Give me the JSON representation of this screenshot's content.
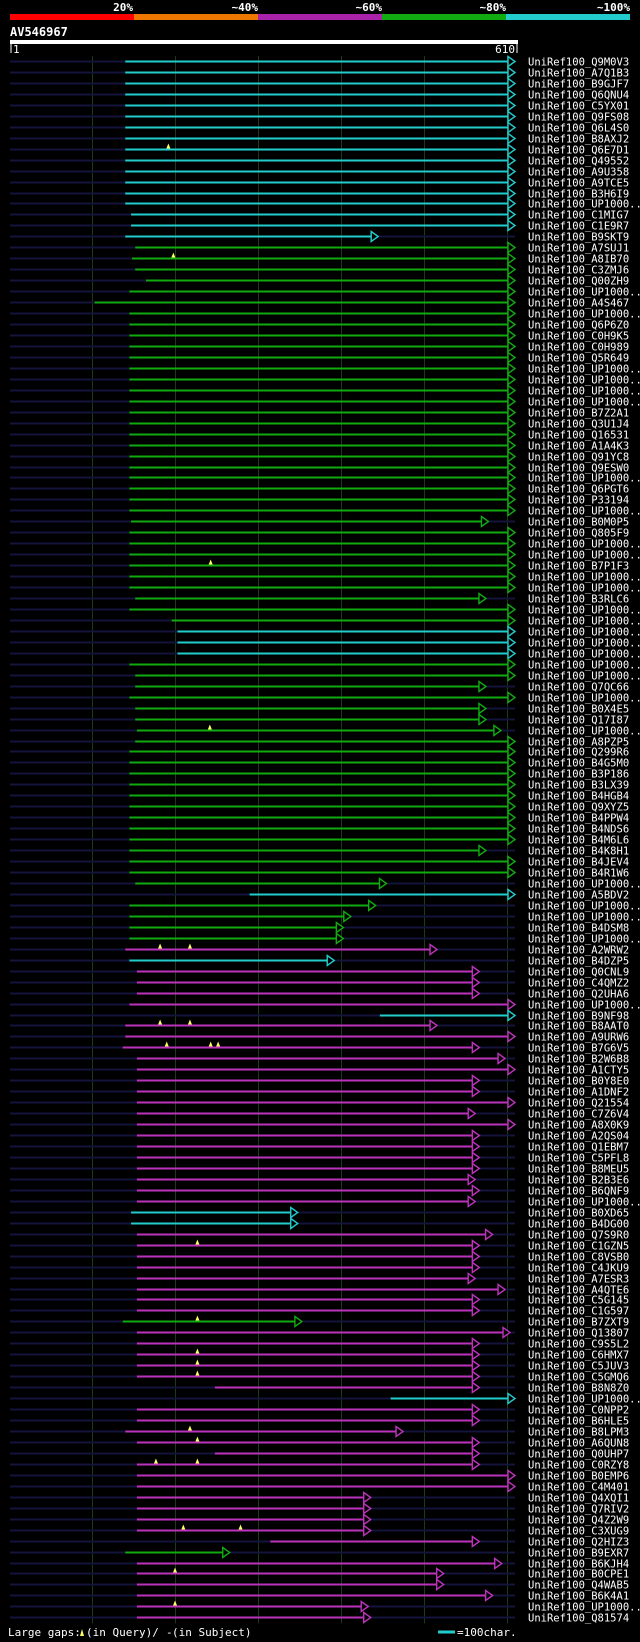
{
  "chart_data": {
    "type": "alignment-overview",
    "title": "AV546967",
    "query_start_label": "1",
    "query_end_label": "610",
    "query_length": 610,
    "identity_scale": {
      "labels": [
        "20%",
        "~40%",
        "~60%",
        "~80%",
        "~100%"
      ],
      "colors": [
        "#ff0000",
        "#ee7700",
        "#aa22aa",
        "#11aa11",
        "#22cccc"
      ]
    },
    "footer": {
      "gaps_label": "Large gaps:",
      "gaps_query": "(in Query)/",
      "gaps_subject_mark": "-",
      "gaps_subject": " (in Subject)",
      "scale_label": "=100char."
    },
    "hits": [
      {
        "name": "UniRef100_Q9M0V3",
        "start": 140,
        "end": 610,
        "color": "cyan"
      },
      {
        "name": "UniRef100_A7Q1B3",
        "start": 140,
        "end": 610,
        "color": "cyan"
      },
      {
        "name": "UniRef100_B9GJF7",
        "start": 140,
        "end": 610,
        "color": "cyan"
      },
      {
        "name": "UniRef100_Q6QNU4",
        "start": 140,
        "end": 610,
        "color": "cyan"
      },
      {
        "name": "UniRef100_C5YX01",
        "start": 140,
        "end": 610,
        "color": "cyan"
      },
      {
        "name": "UniRef100_Q9FS08",
        "start": 140,
        "end": 610,
        "color": "cyan"
      },
      {
        "name": "UniRef100_Q6L4S0",
        "start": 140,
        "end": 610,
        "color": "cyan"
      },
      {
        "name": "UniRef100_B8AXJ2",
        "start": 140,
        "end": 610,
        "color": "cyan"
      },
      {
        "name": "UniRef100_Q6E7D1",
        "start": 140,
        "end": 610,
        "color": "cyan",
        "gaps": [
          192
        ]
      },
      {
        "name": "UniRef100_Q49552",
        "start": 140,
        "end": 610,
        "color": "cyan"
      },
      {
        "name": "UniRef100_A9U358",
        "start": 140,
        "end": 610,
        "color": "cyan"
      },
      {
        "name": "UniRef100_A9TCE5",
        "start": 140,
        "end": 610,
        "color": "cyan"
      },
      {
        "name": "UniRef100_B3H6I9",
        "start": 140,
        "end": 610,
        "color": "cyan"
      },
      {
        "name": "UniRef100_UP1000..",
        "start": 140,
        "end": 610,
        "color": "cyan"
      },
      {
        "name": "UniRef100_C1MIG7",
        "start": 147,
        "end": 610,
        "color": "cyan"
      },
      {
        "name": "UniRef100_C1E9R7",
        "start": 147,
        "end": 610,
        "color": "cyan"
      },
      {
        "name": "UniRef100_B9SKT9",
        "start": 140,
        "end": 445,
        "color": "cyan"
      },
      {
        "name": "UniRef100_A7SUJ1",
        "start": 152,
        "end": 610,
        "color": "green"
      },
      {
        "name": "UniRef100_A8IB70",
        "start": 148,
        "end": 610,
        "color": "green",
        "gaps": [
          198
        ]
      },
      {
        "name": "UniRef100_C3ZMJ6",
        "start": 152,
        "end": 610,
        "color": "green"
      },
      {
        "name": "UniRef100_Q00ZH9",
        "start": 165,
        "end": 610,
        "color": "green"
      },
      {
        "name": "UniRef100_UP1000..",
        "start": 145,
        "end": 610,
        "color": "green"
      },
      {
        "name": "UniRef100_A4S467",
        "start": 103,
        "end": 610,
        "color": "green"
      },
      {
        "name": "UniRef100_UP1000..",
        "start": 145,
        "end": 610,
        "color": "green"
      },
      {
        "name": "UniRef100_Q6P6Z0",
        "start": 145,
        "end": 610,
        "color": "green"
      },
      {
        "name": "UniRef100_C0H9K5",
        "start": 145,
        "end": 610,
        "color": "green"
      },
      {
        "name": "UniRef100_C0H989",
        "start": 145,
        "end": 610,
        "color": "green"
      },
      {
        "name": "UniRef100_Q5R649",
        "start": 145,
        "end": 610,
        "color": "green"
      },
      {
        "name": "UniRef100_UP1000..",
        "start": 145,
        "end": 610,
        "color": "green"
      },
      {
        "name": "UniRef100_UP1000..",
        "start": 145,
        "end": 610,
        "color": "green"
      },
      {
        "name": "UniRef100_UP1000..",
        "start": 145,
        "end": 610,
        "color": "green"
      },
      {
        "name": "UniRef100_UP1000..",
        "start": 145,
        "end": 610,
        "color": "green"
      },
      {
        "name": "UniRef100_B7Z2A1",
        "start": 145,
        "end": 610,
        "color": "green"
      },
      {
        "name": "UniRef100_Q3U1J4",
        "start": 145,
        "end": 610,
        "color": "green"
      },
      {
        "name": "UniRef100_Q16531",
        "start": 145,
        "end": 610,
        "color": "green"
      },
      {
        "name": "UniRef100_A1A4K3",
        "start": 145,
        "end": 610,
        "color": "green"
      },
      {
        "name": "UniRef100_Q91YC8",
        "start": 145,
        "end": 610,
        "color": "green"
      },
      {
        "name": "UniRef100_Q9ESW0",
        "start": 145,
        "end": 610,
        "color": "green"
      },
      {
        "name": "UniRef100_UP1000..",
        "start": 145,
        "end": 610,
        "color": "green"
      },
      {
        "name": "UniRef100_Q6PGT6",
        "start": 145,
        "end": 610,
        "color": "green"
      },
      {
        "name": "UniRef100_P33194",
        "start": 145,
        "end": 610,
        "color": "green"
      },
      {
        "name": "UniRef100_UP1000..",
        "start": 145,
        "end": 610,
        "color": "green"
      },
      {
        "name": "UniRef100_B0M0P5",
        "start": 147,
        "end": 578,
        "color": "green"
      },
      {
        "name": "UniRef100_Q805F9",
        "start": 145,
        "end": 610,
        "color": "green"
      },
      {
        "name": "UniRef100_UP1000..",
        "start": 145,
        "end": 610,
        "color": "green"
      },
      {
        "name": "UniRef100_UP1000..",
        "start": 145,
        "end": 610,
        "color": "green"
      },
      {
        "name": "UniRef100_B7P1F3",
        "start": 145,
        "end": 610,
        "color": "green",
        "gaps": [
          243
        ]
      },
      {
        "name": "UniRef100_UP1000..",
        "start": 145,
        "end": 610,
        "color": "green"
      },
      {
        "name": "UniRef100_UP1000..",
        "start": 145,
        "end": 610,
        "color": "green"
      },
      {
        "name": "UniRef100_B3RLC6",
        "start": 152,
        "end": 575,
        "color": "green"
      },
      {
        "name": "UniRef100_UP1000..",
        "start": 145,
        "end": 610,
        "color": "green"
      },
      {
        "name": "UniRef100_UP1000..",
        "start": 196,
        "end": 610,
        "color": "green"
      },
      {
        "name": "UniRef100_UP1000..",
        "start": 203,
        "end": 610,
        "color": "cyan"
      },
      {
        "name": "UniRef100_UP1000..",
        "start": 203,
        "end": 610,
        "color": "cyan"
      },
      {
        "name": "UniRef100_UP1000..",
        "start": 203,
        "end": 610,
        "color": "cyan"
      },
      {
        "name": "UniRef100_UP1000..",
        "start": 145,
        "end": 610,
        "color": "green"
      },
      {
        "name": "UniRef100_UP1000..",
        "start": 152,
        "end": 610,
        "color": "green"
      },
      {
        "name": "UniRef100_Q7QC66",
        "start": 152,
        "end": 575,
        "color": "green"
      },
      {
        "name": "UniRef100_UP1000..",
        "start": 145,
        "end": 610,
        "color": "green"
      },
      {
        "name": "UniRef100_B0X4E5",
        "start": 152,
        "end": 575,
        "color": "green"
      },
      {
        "name": "UniRef100_Q17I87",
        "start": 152,
        "end": 575,
        "color": "green"
      },
      {
        "name": "UniRef100_UP1000..",
        "start": 154,
        "end": 593,
        "color": "green",
        "gaps": [
          242
        ]
      },
      {
        "name": "UniRef100_A8PZP5",
        "start": 152,
        "end": 610,
        "color": "green"
      },
      {
        "name": "UniRef100_Q299R6",
        "start": 145,
        "end": 610,
        "color": "green"
      },
      {
        "name": "UniRef100_B4G5M0",
        "start": 145,
        "end": 610,
        "color": "green"
      },
      {
        "name": "UniRef100_B3P186",
        "start": 145,
        "end": 610,
        "color": "green"
      },
      {
        "name": "UniRef100_B3LX39",
        "start": 145,
        "end": 610,
        "color": "green"
      },
      {
        "name": "UniRef100_B4HGB4",
        "start": 145,
        "end": 610,
        "color": "green"
      },
      {
        "name": "UniRef100_Q9XYZ5",
        "start": 145,
        "end": 610,
        "color": "green"
      },
      {
        "name": "UniRef100_B4PPW4",
        "start": 145,
        "end": 610,
        "color": "green"
      },
      {
        "name": "UniRef100_B4NDS6",
        "start": 145,
        "end": 610,
        "color": "green"
      },
      {
        "name": "UniRef100_B4M6L6",
        "start": 145,
        "end": 610,
        "color": "green"
      },
      {
        "name": "UniRef100_B4K8H1",
        "start": 145,
        "end": 575,
        "color": "green"
      },
      {
        "name": "UniRef100_B4JEV4",
        "start": 145,
        "end": 610,
        "color": "green"
      },
      {
        "name": "UniRef100_B4R1W6",
        "start": 145,
        "end": 610,
        "color": "green"
      },
      {
        "name": "UniRef100_UP1000..",
        "start": 152,
        "end": 455,
        "color": "green"
      },
      {
        "name": "UniRef100_A5BDV2",
        "start": 290,
        "end": 610,
        "color": "cyan"
      },
      {
        "name": "UniRef100_UP1000..",
        "start": 145,
        "end": 442,
        "color": "green"
      },
      {
        "name": "UniRef100_UP1000..",
        "start": 145,
        "end": 412,
        "color": "green"
      },
      {
        "name": "UniRef100_B4DSM8",
        "start": 145,
        "end": 403,
        "color": "green"
      },
      {
        "name": "UniRef100_UP1000..",
        "start": 145,
        "end": 403,
        "color": "green"
      },
      {
        "name": "UniRef100_A2WRW2",
        "start": 140,
        "end": 516,
        "color": "magenta",
        "gaps": [
          182,
          218
        ]
      },
      {
        "name": "UniRef100_B4DZP5",
        "start": 145,
        "end": 392,
        "color": "cyan"
      },
      {
        "name": "UniRef100_Q0CNL9",
        "start": 154,
        "end": 567,
        "color": "magenta"
      },
      {
        "name": "UniRef100_C4QMZ2",
        "start": 154,
        "end": 567,
        "color": "magenta"
      },
      {
        "name": "UniRef100_Q2UHA6",
        "start": 154,
        "end": 567,
        "color": "magenta"
      },
      {
        "name": "UniRef100_UP1000..",
        "start": 145,
        "end": 610,
        "color": "magenta"
      },
      {
        "name": "UniRef100_B9NF98",
        "start": 447,
        "end": 610,
        "color": "cyan"
      },
      {
        "name": "UniRef100_B8AAT0",
        "start": 140,
        "end": 516,
        "color": "magenta",
        "gaps": [
          182,
          218
        ]
      },
      {
        "name": "UniRef100_A9URW6",
        "start": 140,
        "end": 610,
        "color": "magenta"
      },
      {
        "name": "UniRef100_B7G6V5",
        "start": 137,
        "end": 567,
        "color": "magenta",
        "gaps": [
          190,
          243,
          252
        ]
      },
      {
        "name": "UniRef100_B2W6B8",
        "start": 154,
        "end": 598,
        "color": "magenta"
      },
      {
        "name": "UniRef100_A1CTY5",
        "start": 154,
        "end": 610,
        "color": "magenta"
      },
      {
        "name": "UniRef100_B0Y8E0",
        "start": 154,
        "end": 567,
        "color": "magenta"
      },
      {
        "name": "UniRef100_A1DNF2",
        "start": 154,
        "end": 567,
        "color": "magenta"
      },
      {
        "name": "UniRef100_Q21554",
        "start": 154,
        "end": 610,
        "color": "magenta"
      },
      {
        "name": "UniRef100_C7Z6V4",
        "start": 154,
        "end": 562,
        "color": "magenta"
      },
      {
        "name": "UniRef100_A8X0K9",
        "start": 154,
        "end": 610,
        "color": "magenta"
      },
      {
        "name": "UniRef100_A2QS04",
        "start": 154,
        "end": 567,
        "color": "magenta"
      },
      {
        "name": "UniRef100_Q1EBM7",
        "start": 154,
        "end": 567,
        "color": "magenta"
      },
      {
        "name": "UniRef100_C5PFL8",
        "start": 154,
        "end": 567,
        "color": "magenta"
      },
      {
        "name": "UniRef100_B8MEU5",
        "start": 154,
        "end": 567,
        "color": "magenta"
      },
      {
        "name": "UniRef100_B2B3E6",
        "start": 154,
        "end": 562,
        "color": "magenta"
      },
      {
        "name": "UniRef100_B6QNF9",
        "start": 154,
        "end": 567,
        "color": "magenta"
      },
      {
        "name": "UniRef100_UP1000..",
        "start": 154,
        "end": 562,
        "color": "magenta"
      },
      {
        "name": "UniRef100_B0XD65",
        "start": 147,
        "end": 348,
        "color": "cyan"
      },
      {
        "name": "UniRef100_B4DG00",
        "start": 147,
        "end": 348,
        "color": "cyan"
      },
      {
        "name": "UniRef100_Q7S9R0",
        "start": 154,
        "end": 583,
        "color": "magenta"
      },
      {
        "name": "UniRef100_C1GZN5",
        "start": 154,
        "end": 567,
        "color": "magenta",
        "gaps": [
          227
        ]
      },
      {
        "name": "UniRef100_C8VSB0",
        "start": 154,
        "end": 567,
        "color": "magenta"
      },
      {
        "name": "UniRef100_C4JKU9",
        "start": 154,
        "end": 567,
        "color": "magenta"
      },
      {
        "name": "UniRef100_A7ESR3",
        "start": 154,
        "end": 562,
        "color": "magenta"
      },
      {
        "name": "UniRef100_A4QTE6",
        "start": 154,
        "end": 598,
        "color": "magenta"
      },
      {
        "name": "UniRef100_C5G145",
        "start": 154,
        "end": 567,
        "color": "magenta"
      },
      {
        "name": "UniRef100_C1G597",
        "start": 154,
        "end": 567,
        "color": "magenta"
      },
      {
        "name": "UniRef100_B7ZXT9",
        "start": 137,
        "end": 353,
        "color": "green",
        "gaps": [
          227
        ]
      },
      {
        "name": "UniRef100_Q13807",
        "start": 154,
        "end": 604,
        "color": "magenta"
      },
      {
        "name": "UniRef100_C9S5L2",
        "start": 154,
        "end": 567,
        "color": "magenta"
      },
      {
        "name": "UniRef100_C6HMX7",
        "start": 154,
        "end": 567,
        "color": "magenta",
        "gaps": [
          227
        ]
      },
      {
        "name": "UniRef100_C5JUV3",
        "start": 154,
        "end": 567,
        "color": "magenta",
        "gaps": [
          227
        ]
      },
      {
        "name": "UniRef100_C5GMQ6",
        "start": 154,
        "end": 567,
        "color": "magenta",
        "gaps": [
          227
        ]
      },
      {
        "name": "UniRef100_B8N8Z0",
        "start": 248,
        "end": 567,
        "color": "magenta"
      },
      {
        "name": "UniRef100_UP1000..",
        "start": 460,
        "end": 610,
        "color": "cyan"
      },
      {
        "name": "UniRef100_C0NPP2",
        "start": 154,
        "end": 567,
        "color": "magenta"
      },
      {
        "name": "UniRef100_B6HLE5",
        "start": 154,
        "end": 567,
        "color": "magenta"
      },
      {
        "name": "UniRef100_B8LPM3",
        "start": 140,
        "end": 475,
        "color": "magenta",
        "gaps": [
          218
        ]
      },
      {
        "name": "UniRef100_A6QUN8",
        "start": 154,
        "end": 567,
        "color": "magenta",
        "gaps": [
          227
        ]
      },
      {
        "name": "UniRef100_Q0UHP7",
        "start": 248,
        "end": 567,
        "color": "magenta"
      },
      {
        "name": "UniRef100_C0RZY8",
        "start": 154,
        "end": 567,
        "color": "magenta",
        "gaps": [
          177,
          227
        ]
      },
      {
        "name": "UniRef100_B0EMP6",
        "start": 154,
        "end": 610,
        "color": "magenta"
      },
      {
        "name": "UniRef100_C4M401",
        "start": 154,
        "end": 610,
        "color": "magenta"
      },
      {
        "name": "UniRef100_Q4XQI1",
        "start": 154,
        "end": 436,
        "color": "magenta"
      },
      {
        "name": "UniRef100_Q7RIV2",
        "start": 154,
        "end": 436,
        "color": "magenta"
      },
      {
        "name": "UniRef100_Q4Z2W9",
        "start": 154,
        "end": 436,
        "color": "magenta"
      },
      {
        "name": "UniRef100_C3XUG9",
        "start": 154,
        "end": 436,
        "color": "magenta",
        "gaps": [
          210,
          279
        ]
      },
      {
        "name": "UniRef100_Q2HIZ3",
        "start": 315,
        "end": 567,
        "color": "magenta"
      },
      {
        "name": "UniRef100_B9EXR7",
        "start": 140,
        "end": 266,
        "color": "green"
      },
      {
        "name": "UniRef100_B6KJH4",
        "start": 154,
        "end": 594,
        "color": "magenta"
      },
      {
        "name": "UniRef100_B0CPE1",
        "start": 154,
        "end": 524,
        "color": "magenta",
        "gaps": [
          200
        ]
      },
      {
        "name": "UniRef100_Q4WAB5",
        "start": 154,
        "end": 524,
        "color": "magenta"
      },
      {
        "name": "UniRef100_B6K4A1",
        "start": 154,
        "end": 583,
        "color": "magenta"
      },
      {
        "name": "UniRef100_UP1000..",
        "start": 154,
        "end": 433,
        "color": "magenta",
        "gaps": [
          200
        ]
      },
      {
        "name": "UniRef100_Q81574",
        "start": 154,
        "end": 436,
        "color": "magenta"
      }
    ]
  }
}
